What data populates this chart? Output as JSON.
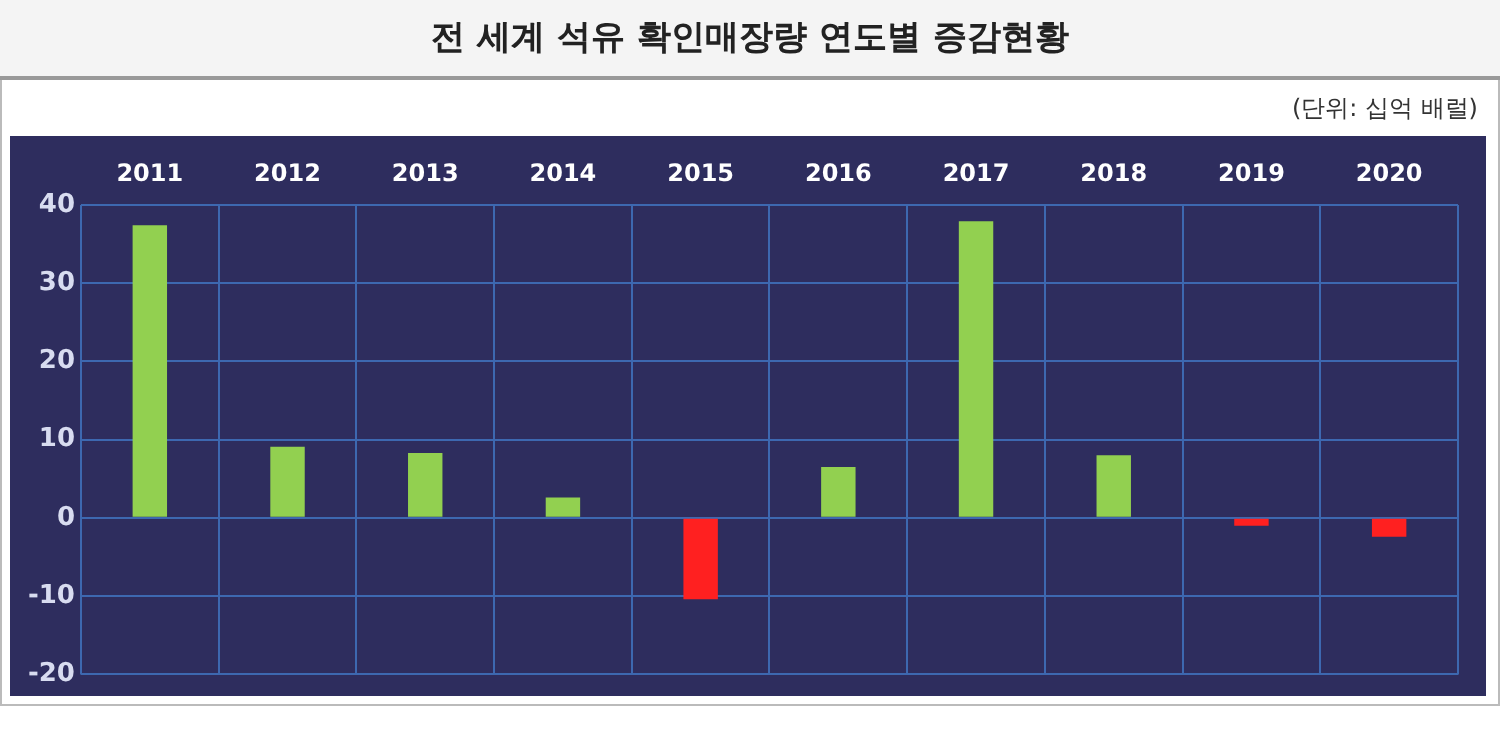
{
  "chart_data": {
    "type": "bar",
    "title": "전 세계 석유 확인매장량 연도별 증감현황",
    "subtitle": "(단위: 십억 배럴)",
    "categories": [
      "2011",
      "2012",
      "2013",
      "2014",
      "2015",
      "2016",
      "2017",
      "2018",
      "2019",
      "2020"
    ],
    "values": [
      37.4,
      9.1,
      8.3,
      2.6,
      -10.4,
      6.5,
      37.9,
      8.0,
      -1.0,
      -2.4
    ],
    "colors": [
      "#92d050",
      "#92d050",
      "#92d050",
      "#92d050",
      "#ff2020",
      "#92d050",
      "#92d050",
      "#92d050",
      "#ff2020",
      "#ff2020"
    ],
    "ylim": [
      -20,
      40
    ],
    "yticks": [
      -20,
      -10,
      0,
      10,
      20,
      30,
      40
    ],
    "grid": true,
    "legend": false
  }
}
